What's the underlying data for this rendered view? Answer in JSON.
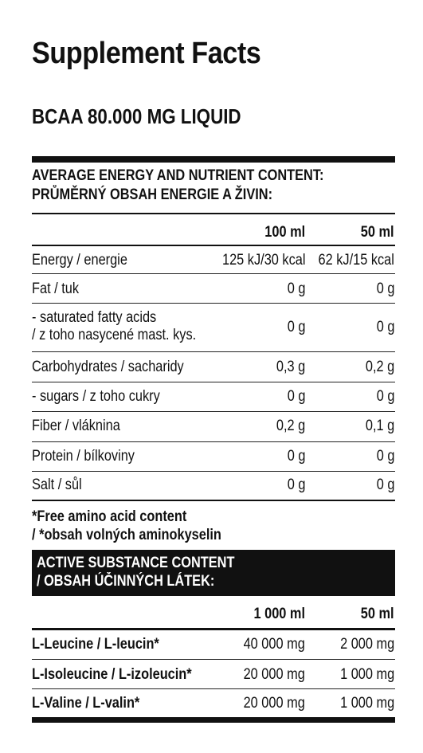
{
  "title": "Supplement Facts",
  "product_name": "BCAA 80.000 MG LIQUID",
  "nutrient_section": {
    "heading_line1": "AVERAGE ENERGY AND NUTRIENT CONTENT:",
    "heading_line2": "PRŮMĚRNÝ OBSAH ENERGIE A ŽIVIN:",
    "col1_header": "100 ml",
    "col2_header": "50 ml",
    "rows": [
      {
        "label": "Energy / energie",
        "label2": "",
        "v1": "125 kJ/30 kcal",
        "v2": "62 kJ/15 kcal"
      },
      {
        "label": "Fat / tuk",
        "label2": "",
        "v1": "0 g",
        "v2": "0 g"
      },
      {
        "label": "- saturated fatty acids",
        "label2": "/ z toho nasycené mast. kys.",
        "v1": "0 g",
        "v2": "0 g"
      },
      {
        "label": "Carbohydrates / sacharidy",
        "label2": "",
        "v1": "0,3 g",
        "v2": "0,2 g"
      },
      {
        "label": "- sugars / z toho cukry",
        "label2": "",
        "v1": "0 g",
        "v2": "0 g"
      },
      {
        "label": "Fiber / vláknina",
        "label2": "",
        "v1": "0,2 g",
        "v2": "0,1 g"
      },
      {
        "label": "Protein / bílkoviny",
        "label2": "",
        "v1": "0 g",
        "v2": "0 g"
      },
      {
        "label": "Salt / sůl",
        "label2": "",
        "v1": "0 g",
        "v2": "0 g"
      }
    ]
  },
  "footnote_line1": "*Free amino acid content",
  "footnote_line2": "/ *obsah volných aminokyselin",
  "active_section": {
    "heading_line1": "ACTIVE SUBSTANCE CONTENT",
    "heading_line2": "/ OBSAH ÚČINNÝCH LÁTEK:",
    "col1_header": "1 000 ml",
    "col2_header": "50 ml",
    "rows": [
      {
        "label": "L-Leucine / L-leucin*",
        "v1": "40 000 mg",
        "v2": "2 000 mg"
      },
      {
        "label": "L-Isoleucine / L-izoleucin*",
        "v1": "20 000 mg",
        "v2": "1 000 mg"
      },
      {
        "label": "L-Valine / L-valin*",
        "v1": "20 000 mg",
        "v2": "1 000 mg"
      }
    ]
  }
}
